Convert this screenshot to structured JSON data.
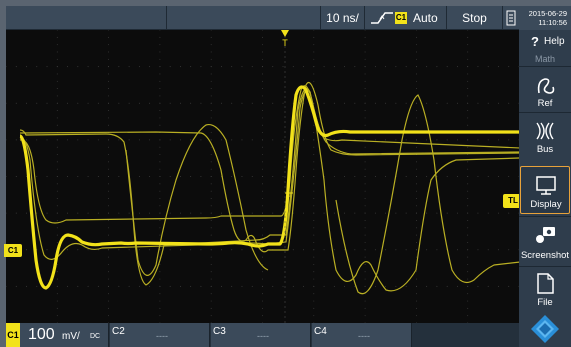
{
  "topbar": {
    "timebase": "10 ns/",
    "trigger_channel": "C1",
    "trigger_mode": "Auto",
    "run_state": "Stop",
    "date": "2015-06-29",
    "time": "11:10:56"
  },
  "plot": {
    "trigger_position_label": "T",
    "trigger_level_label": "TL",
    "channel_marker": "C1"
  },
  "sidebar": {
    "help": "Help",
    "math": "Math",
    "ref": "Ref",
    "bus": "Bus",
    "display": "Display",
    "screenshot": "Screenshot",
    "file": "File"
  },
  "bottombar": {
    "c1_tag": "C1",
    "c1_scale_value": "100",
    "c1_scale_unit": "mV/",
    "c1_coupling": "DC",
    "c2_tag": "C2",
    "c3_tag": "C3",
    "c4_tag": "C4",
    "off_value": "----"
  },
  "colors": {
    "trace": "#f2e21a",
    "ui_panel": "#3b4a5a",
    "sidebar": "#2f3d4c",
    "selected_outline": "#e8a23a",
    "grid": "#3a3a3a"
  }
}
